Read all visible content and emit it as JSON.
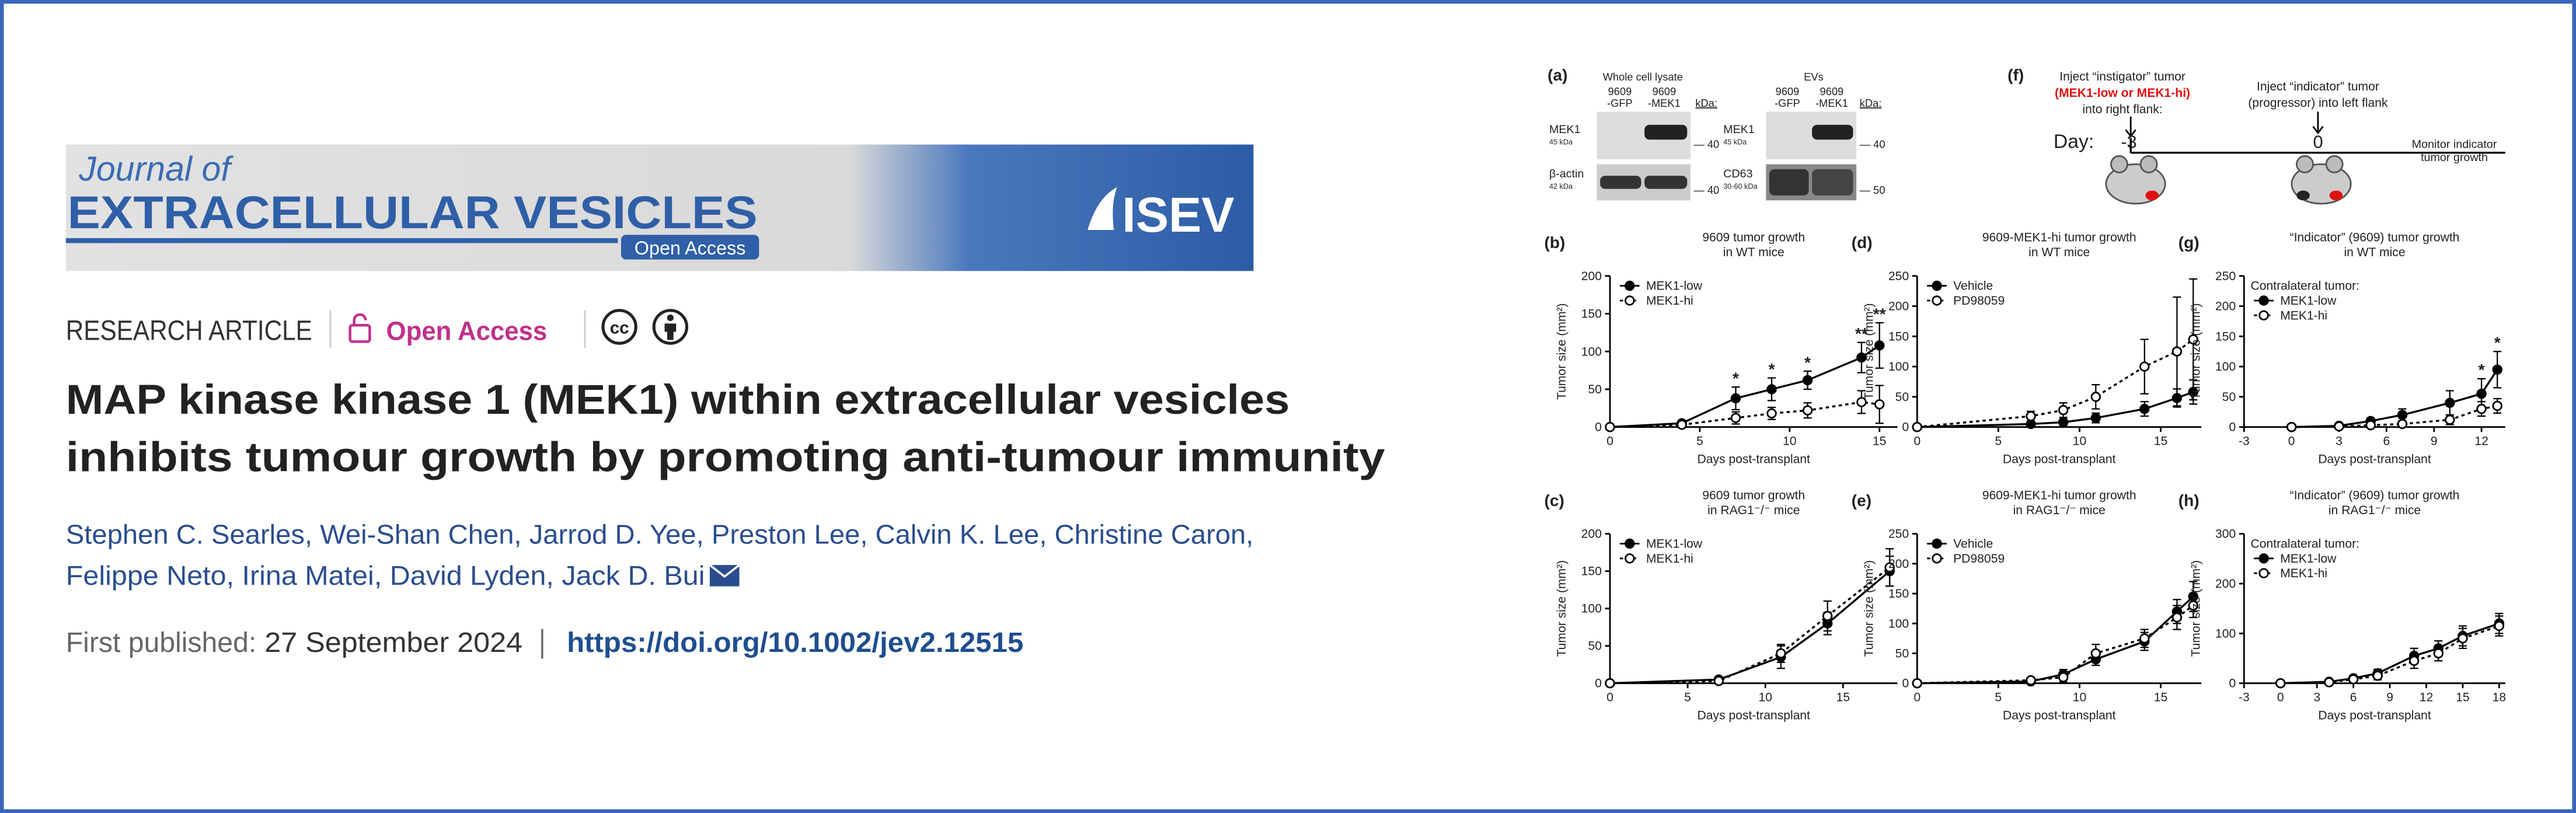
{
  "header": {
    "journal_line1": "Journal of",
    "journal_line2": "EXTRACELLULAR VESICLES",
    "badge": "Open Access",
    "society": "ISEV"
  },
  "article": {
    "kind": "RESEARCH ARTICLE",
    "access": "Open Access",
    "license_icon": "cc",
    "title": [
      "MAP kinase kinase 1 (MEK1) within extracellular vesicles",
      "inhibits tumour growth by promoting anti-tumour immunity"
    ],
    "authors": [
      "Stephen C. Searles, Wei-Shan Chen, Jarrod D. Yee, Preston Lee, Calvin K. Lee, Christine Caron,",
      "Felippe Neto, Irina Matei, David Lyden, Jack D. Bui"
    ],
    "published_label": "First published:",
    "published_date": "27 September 2024",
    "doi": "https://doi.org/10.1002/jev2.12515"
  },
  "panel_a": {
    "label": "(a)",
    "headers": [
      "Whole cell lysate",
      "EVs"
    ],
    "lanes": [
      [
        "9609",
        "-GFP"
      ],
      [
        "9609",
        "-MEK1"
      ],
      [
        "9609",
        "-GFP"
      ],
      [
        "9609",
        "-MEK1"
      ]
    ],
    "kda": "kDa:",
    "rows": [
      [
        "MEK1",
        "45 kDa",
        "— 40"
      ],
      [
        "β-actin",
        "42 kDa",
        "— 40"
      ],
      [
        "MEK1",
        "45 kDa",
        "— 40"
      ],
      [
        "CD63",
        "30-60 kDa",
        "— 50"
      ]
    ]
  },
  "panel_f": {
    "label": "(f)",
    "instigator": [
      "Inject “instigator” tumor",
      "(MEK1-low or MEK1-hi)",
      "into right flank:"
    ],
    "indicator": [
      "Inject “indicator” tumor",
      "(progressor) into left flank"
    ],
    "day_label": "Day:",
    "days": [
      "-3",
      "0"
    ],
    "monitor": [
      "Monitor indicator",
      "tumor growth"
    ]
  },
  "chart_data": [
    {
      "type": "line",
      "panel": "(b)",
      "title": [
        "9609 tumor growth",
        "in WT mice"
      ],
      "ylabel": "Tumor size (mm²)",
      "xlabel": "Days post-transplant",
      "x": [
        0,
        4,
        7,
        9,
        11,
        14,
        15
      ],
      "xlim": [
        0,
        16
      ],
      "xticks": [
        0,
        5,
        10,
        15
      ],
      "ylim": [
        0,
        200
      ],
      "yticks": [
        0,
        50,
        100,
        150,
        200
      ],
      "series": [
        {
          "name": "MEK1-low",
          "color": "#000000",
          "marker": "filled",
          "line": "solid",
          "values": [
            0,
            5,
            38,
            50,
            62,
            92,
            108
          ],
          "errors": [
            0,
            2,
            15,
            15,
            12,
            20,
            30
          ]
        },
        {
          "name": "MEK1-hi",
          "color": "#000000",
          "marker": "open",
          "line": "dotted",
          "values": [
            0,
            3,
            12,
            18,
            22,
            33,
            30
          ],
          "errors": [
            0,
            2,
            8,
            8,
            10,
            15,
            25
          ]
        }
      ],
      "annotations": [
        {
          "x": 7,
          "text": "*"
        },
        {
          "x": 9,
          "text": "*"
        },
        {
          "x": 11,
          "text": "*"
        },
        {
          "x": 14,
          "text": "**"
        },
        {
          "x": 15,
          "text": "**"
        }
      ]
    },
    {
      "type": "line",
      "panel": "(c)",
      "title": [
        "9609 tumor growth",
        "in RAG1⁻/⁻ mice"
      ],
      "ylabel": "Tumor size (mm²)",
      "xlabel": "Days post-transplant",
      "x": [
        0,
        7,
        11,
        14,
        18
      ],
      "xlim": [
        0,
        18.5
      ],
      "xticks": [
        0,
        5,
        10,
        15
      ],
      "ylim": [
        0,
        200
      ],
      "yticks": [
        0,
        50,
        100,
        150,
        200
      ],
      "series": [
        {
          "name": "MEK1-low",
          "color": "#000000",
          "marker": "filled",
          "line": "solid",
          "values": [
            0,
            5,
            35,
            80,
            150
          ],
          "errors": [
            0,
            2,
            15,
            15,
            20
          ]
        },
        {
          "name": "MEK1-hi",
          "color": "#000000",
          "marker": "open",
          "line": "dotted",
          "values": [
            0,
            3,
            40,
            90,
            155
          ],
          "errors": [
            0,
            2,
            12,
            20,
            25
          ]
        }
      ]
    },
    {
      "type": "line",
      "panel": "(d)",
      "title": [
        "9609-MEK1-hi tumor growth",
        "in WT mice"
      ],
      "ylabel": "Tumor size (mm²)",
      "xlabel": "Days post-transplant",
      "x": [
        0,
        7,
        9,
        11,
        14,
        16,
        17
      ],
      "xlim": [
        0,
        17.5
      ],
      "xticks": [
        0,
        5,
        10,
        15
      ],
      "ylim": [
        0,
        250
      ],
      "yticks": [
        0,
        50,
        100,
        150,
        200,
        250
      ],
      "series": [
        {
          "name": "Vehicle",
          "color": "#000000",
          "marker": "filled",
          "line": "solid",
          "values": [
            0,
            5,
            8,
            15,
            30,
            48,
            58
          ],
          "errors": [
            0,
            3,
            5,
            8,
            12,
            15,
            20
          ]
        },
        {
          "name": "PD98059",
          "color": "#000000",
          "marker": "open",
          "line": "dotted",
          "values": [
            0,
            18,
            28,
            50,
            100,
            125,
            145
          ],
          "errors": [
            0,
            8,
            12,
            20,
            45,
            90,
            100
          ]
        }
      ]
    },
    {
      "type": "line",
      "panel": "(e)",
      "title": [
        "9609-MEK1-hi tumor growth",
        "in RAG1⁻/⁻ mice"
      ],
      "ylabel": "Tumor size (mm²)",
      "xlabel": "Days post-transplant",
      "x": [
        0,
        7,
        9,
        11,
        14,
        16,
        17
      ],
      "xlim": [
        0,
        17.5
      ],
      "xticks": [
        0,
        5,
        10,
        15
      ],
      "ylim": [
        0,
        250
      ],
      "yticks": [
        0,
        50,
        100,
        150,
        200,
        250
      ],
      "series": [
        {
          "name": "Vehicle",
          "color": "#000000",
          "marker": "filled",
          "line": "solid",
          "values": [
            0,
            3,
            15,
            40,
            70,
            120,
            145
          ],
          "errors": [
            0,
            3,
            8,
            10,
            15,
            20,
            25
          ]
        },
        {
          "name": "PD98059",
          "color": "#000000",
          "marker": "open",
          "line": "dotted",
          "values": [
            0,
            5,
            10,
            50,
            75,
            110,
            130
          ],
          "errors": [
            0,
            3,
            8,
            15,
            15,
            20,
            20
          ]
        }
      ]
    },
    {
      "type": "line",
      "panel": "(g)",
      "title": [
        "“Indicator” (9609) tumor growth",
        "in WT mice"
      ],
      "ylabel": "Tumor size (mm²)",
      "xlabel": "Days post-transplant",
      "legend_title": "Contralateral tumor:",
      "x": [
        0,
        3,
        5,
        7,
        10,
        12,
        13
      ],
      "xlim": [
        -3,
        13.5
      ],
      "xticks": [
        -3,
        0,
        3,
        6,
        9,
        12
      ],
      "ylim": [
        0,
        250
      ],
      "yticks": [
        0,
        50,
        100,
        150,
        200,
        250
      ],
      "series": [
        {
          "name": "MEK1-low",
          "color": "#000000",
          "marker": "filled",
          "line": "solid",
          "values": [
            0,
            2,
            10,
            20,
            40,
            55,
            95
          ],
          "errors": [
            0,
            2,
            5,
            10,
            20,
            25,
            30
          ]
        },
        {
          "name": "MEK1-hi",
          "color": "#000000",
          "marker": "open",
          "line": "dotted",
          "values": [
            0,
            1,
            3,
            5,
            12,
            30,
            35
          ],
          "errors": [
            0,
            1,
            2,
            4,
            8,
            12,
            12
          ]
        }
      ],
      "annotations": [
        {
          "x": 12,
          "text": "*"
        },
        {
          "x": 13,
          "text": "*"
        }
      ]
    },
    {
      "type": "line",
      "panel": "(h)",
      "title": [
        "“Indicator” (9609) tumor growth",
        "in RAG1⁻/⁻ mice"
      ],
      "ylabel": "Tumor size (mm²)",
      "xlabel": "Days post-transplant",
      "legend_title": "Contralateral tumor:",
      "x": [
        0,
        4,
        6,
        8,
        11,
        13,
        15,
        18
      ],
      "xlim": [
        -3,
        18.5
      ],
      "xticks": [
        -3,
        0,
        3,
        6,
        9,
        12,
        15,
        18
      ],
      "ylim": [
        0,
        300
      ],
      "yticks": [
        0,
        100,
        200,
        300
      ],
      "series": [
        {
          "name": "MEK1-low",
          "color": "#000000",
          "marker": "filled",
          "line": "solid",
          "values": [
            0,
            3,
            10,
            20,
            55,
            70,
            95,
            120
          ],
          "errors": [
            0,
            3,
            5,
            8,
            15,
            15,
            20,
            20
          ]
        },
        {
          "name": "MEK1-hi",
          "color": "#000000",
          "marker": "open",
          "line": "dotted",
          "values": [
            0,
            2,
            8,
            15,
            45,
            60,
            90,
            115
          ],
          "errors": [
            0,
            2,
            5,
            8,
            15,
            15,
            20,
            20
          ]
        }
      ]
    }
  ]
}
